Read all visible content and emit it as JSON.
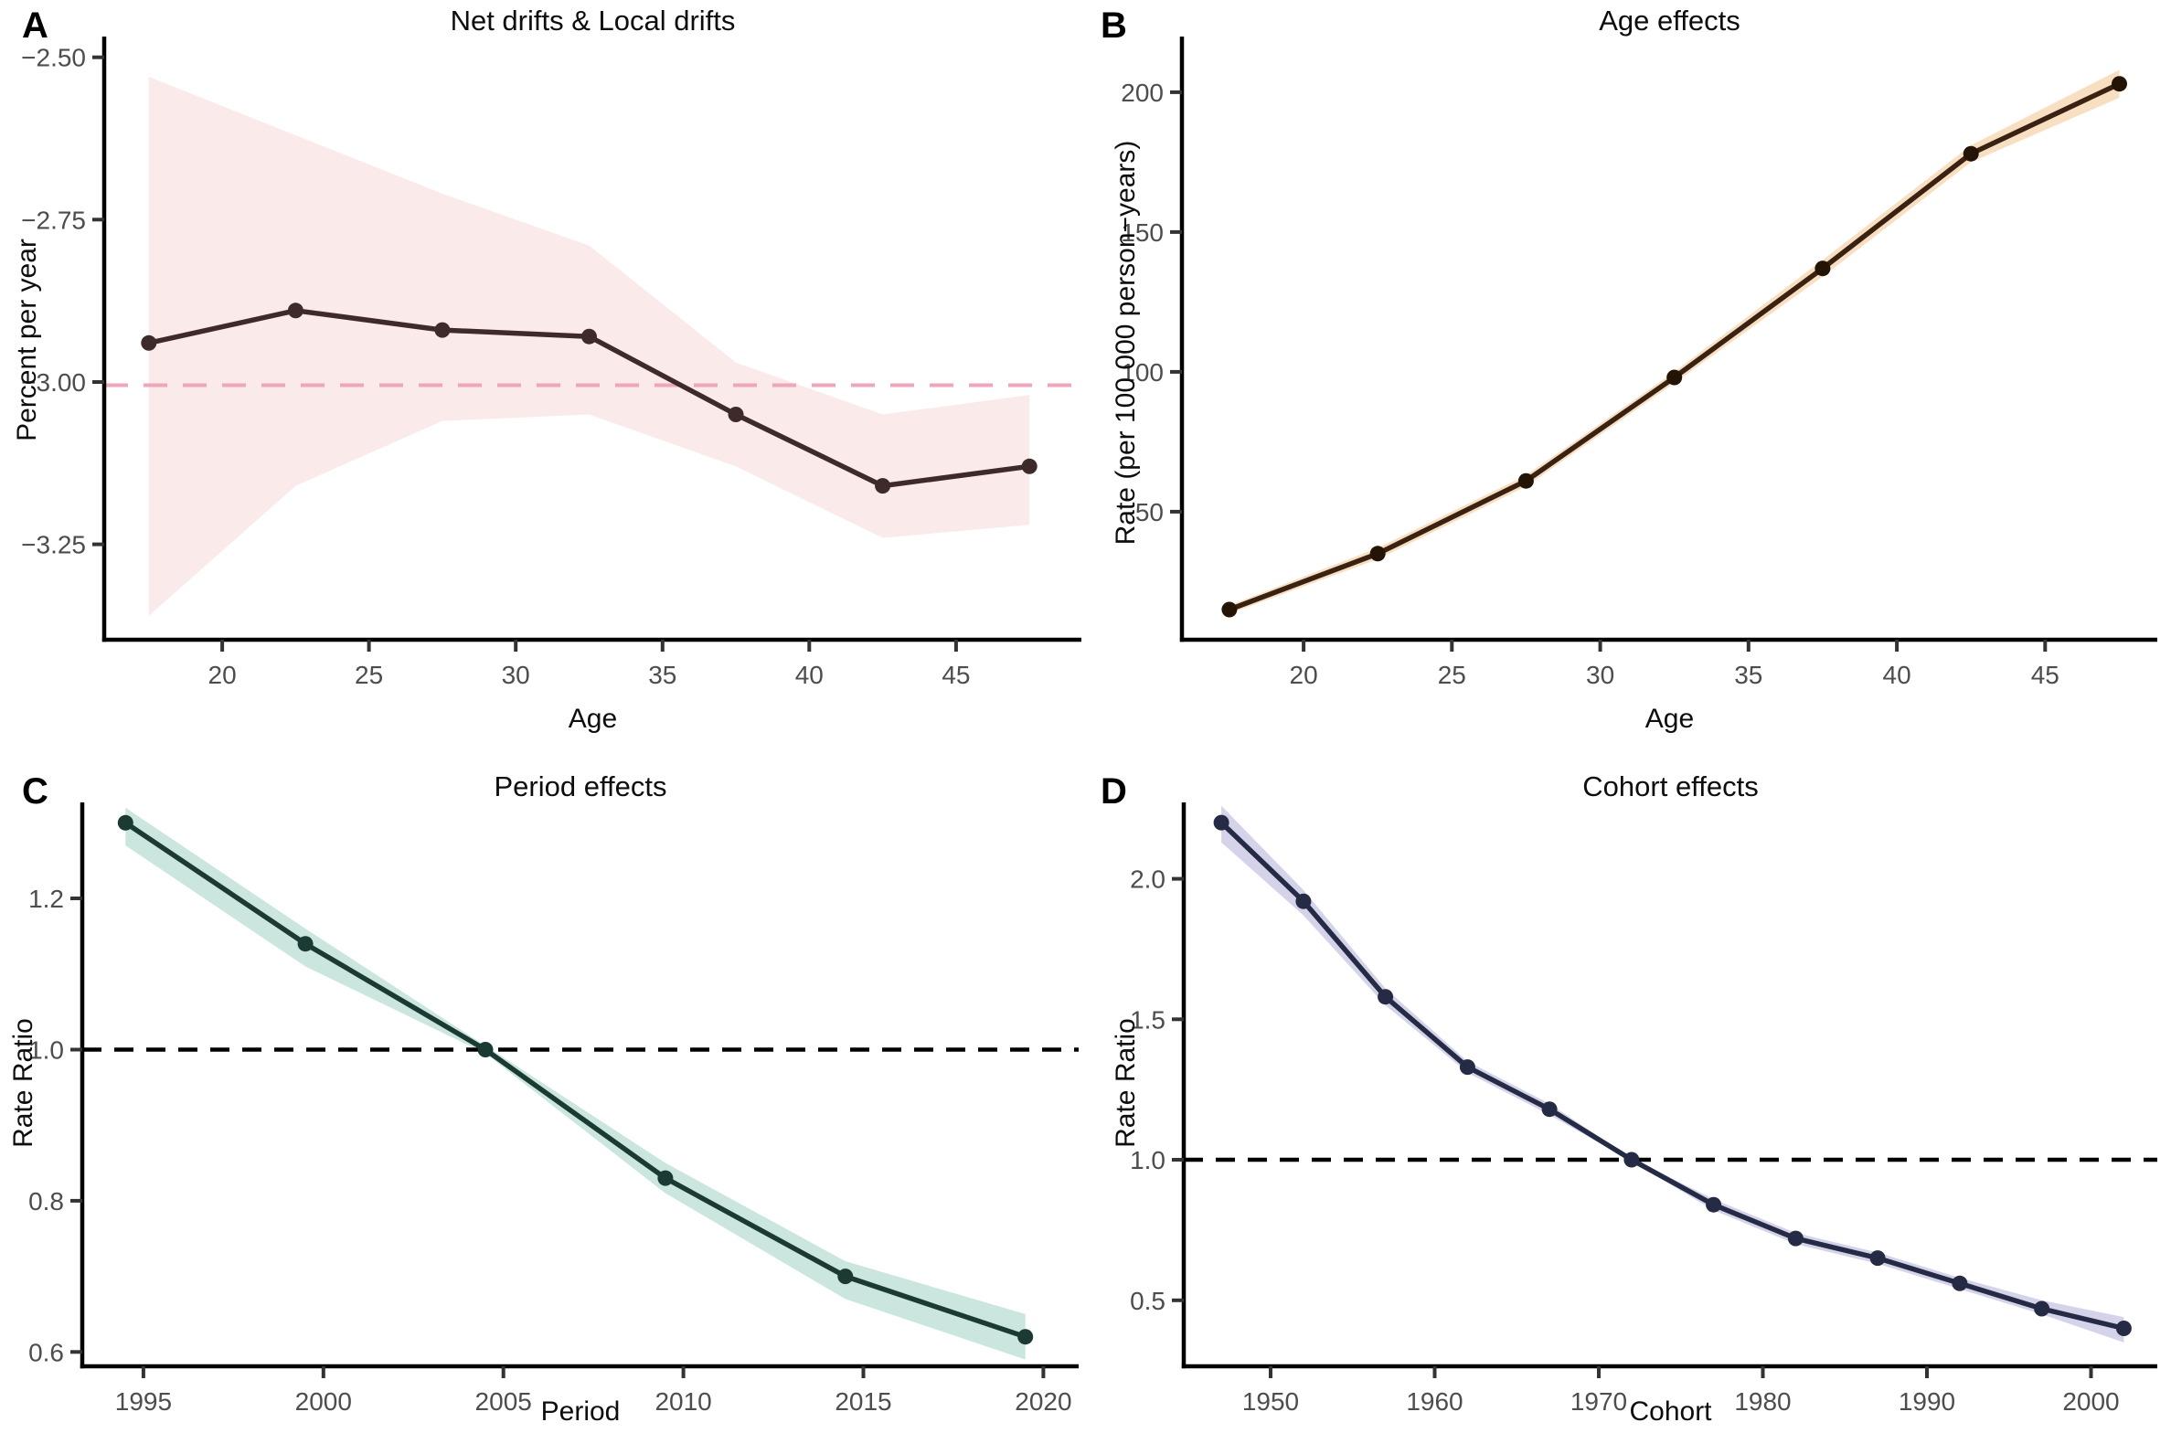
{
  "figure": {
    "background": "#ffffff",
    "tick_label_color": "#4d4d4d",
    "axis_color": "#000000"
  },
  "chart_data": [
    {
      "id": "A",
      "type": "line",
      "letter": "A",
      "title": "Net drifts & Local drifts",
      "xlabel": "Age",
      "ylabel": "Percent per year",
      "x": [
        17.5,
        22.5,
        27.5,
        32.5,
        37.5,
        42.5,
        47.5
      ],
      "y": [
        -2.94,
        -2.89,
        -2.92,
        -2.93,
        -3.05,
        -3.16,
        -3.13
      ],
      "ci_upper": [
        -2.53,
        -2.62,
        -2.71,
        -2.79,
        -2.97,
        -3.05,
        -3.02
      ],
      "ci_lower": [
        -3.36,
        -3.16,
        -3.06,
        -3.05,
        -3.13,
        -3.24,
        -3.22
      ],
      "ref_line": -3.005,
      "x_ticks": [
        20,
        25,
        30,
        35,
        40,
        45
      ],
      "x_tick_labels": [
        "20",
        "25",
        "30",
        "35",
        "40",
        "45"
      ],
      "y_ticks": [
        -2.5,
        -2.75,
        -3.0,
        -3.25
      ],
      "y_tick_labels": [
        "−2.50",
        "−2.75",
        "−3.00",
        "−3.25"
      ],
      "x_domain": [
        15.98,
        49.27
      ],
      "y_domain": [
        -3.397,
        -2.468
      ],
      "colors": {
        "line": "#3e2a2a",
        "point": "#3e2a2a",
        "band": "#faeaea",
        "ref": "#efa6b8"
      }
    },
    {
      "id": "B",
      "type": "line",
      "letter": "B",
      "title": "Age effects",
      "xlabel": "Age",
      "ylabel": "Rate (per 100 000 person−years)",
      "x": [
        17.5,
        22.5,
        27.5,
        32.5,
        37.5,
        42.5,
        47.5
      ],
      "y": [
        15,
        35,
        61,
        98,
        137,
        178,
        203
      ],
      "ci_upper": [
        16.5,
        37,
        63,
        100,
        140,
        181,
        208
      ],
      "ci_lower": [
        13.5,
        33,
        59,
        96,
        134,
        175,
        198
      ],
      "ref_line": null,
      "x_ticks": [
        20,
        25,
        30,
        35,
        40,
        45
      ],
      "x_tick_labels": [
        "20",
        "25",
        "30",
        "35",
        "40",
        "45"
      ],
      "y_ticks": [
        50,
        100,
        150,
        200
      ],
      "y_tick_labels": [
        "50",
        "100",
        "150",
        "200"
      ],
      "x_domain": [
        15.9,
        48.78
      ],
      "y_domain": [
        4.2,
        219.9
      ],
      "colors": {
        "line": "#3a2212",
        "point": "#241405",
        "band": "#f8dfc2",
        "ref": "#000000"
      }
    },
    {
      "id": "C",
      "type": "line",
      "letter": "C",
      "title": "Period effects",
      "xlabel": "Period",
      "ylabel": "Rate Ratio",
      "x": [
        1994.5,
        1999.5,
        2004.5,
        2009.5,
        2014.5,
        2019.5
      ],
      "y": [
        1.3,
        1.14,
        1.0,
        0.83,
        0.7,
        0.62
      ],
      "ci_upper": [
        1.32,
        1.16,
        1.005,
        0.85,
        0.72,
        0.65
      ],
      "ci_lower": [
        1.27,
        1.11,
        0.995,
        0.81,
        0.67,
        0.59
      ],
      "ref_line": 1.0,
      "x_ticks": [
        1995,
        2000,
        2005,
        2010,
        2015,
        2020
      ],
      "x_tick_labels": [
        "1995",
        "2000",
        "2005",
        "2010",
        "2015",
        "2020"
      ],
      "y_ticks": [
        0.6,
        0.8,
        1.0,
        1.2
      ],
      "y_tick_labels": [
        "0.6",
        "0.8",
        "1.0",
        "1.2"
      ],
      "x_domain": [
        1993.3,
        2020.98
      ],
      "y_domain": [
        0.581,
        1.327
      ],
      "colors": {
        "line": "#1b3a33",
        "point": "#1b3a33",
        "band": "#cbe6df",
        "ref": "#000000"
      }
    },
    {
      "id": "D",
      "type": "line",
      "letter": "D",
      "title": "Cohort effects",
      "xlabel": "Cohort",
      "ylabel": "Rate Ratio",
      "x": [
        1947,
        1952,
        1957,
        1962,
        1967,
        1972,
        1977,
        1982,
        1987,
        1992,
        1997,
        2002
      ],
      "y": [
        2.2,
        1.92,
        1.58,
        1.33,
        1.18,
        1.0,
        0.84,
        0.72,
        0.65,
        0.56,
        0.47,
        0.4
      ],
      "ci_upper": [
        2.26,
        1.96,
        1.61,
        1.35,
        1.2,
        1.005,
        0.86,
        0.74,
        0.67,
        0.58,
        0.5,
        0.44
      ],
      "ci_lower": [
        2.13,
        1.87,
        1.55,
        1.31,
        1.16,
        0.995,
        0.82,
        0.7,
        0.63,
        0.54,
        0.45,
        0.35
      ],
      "ref_line": 1.0,
      "x_ticks": [
        1950,
        1960,
        1970,
        1980,
        1990,
        2000
      ],
      "x_tick_labels": [
        "1950",
        "1960",
        "1970",
        "1980",
        "1990",
        "2000"
      ],
      "y_ticks": [
        0.5,
        1.0,
        1.5,
        2.0
      ],
      "y_tick_labels": [
        "0.5",
        "1.0",
        "1.5",
        "2.0"
      ],
      "x_domain": [
        1944.71,
        2004.04
      ],
      "y_domain": [
        0.265,
        2.272
      ],
      "colors": {
        "line": "#252a45",
        "point": "#252a45",
        "band": "#d5d3ea",
        "ref": "#000000"
      }
    }
  ]
}
